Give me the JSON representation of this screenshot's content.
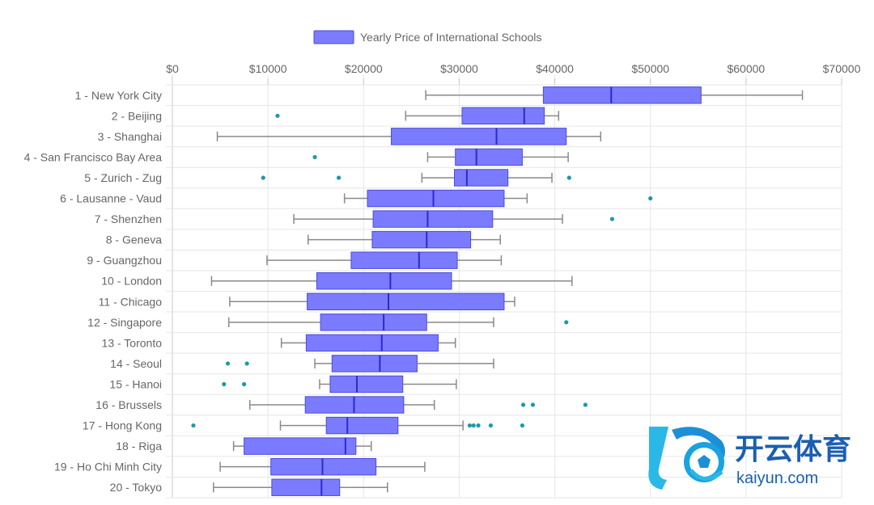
{
  "chart_data": {
    "type": "boxplot",
    "orientation": "horizontal",
    "legend": {
      "label": "Yearly Price of International Schools",
      "position": "top",
      "color": "#7b7bff",
      "border_color": "#4b4bdb"
    },
    "xlim": [
      0,
      70000
    ],
    "x_ticks": [
      {
        "value": 0,
        "label": "$0"
      },
      {
        "value": 10000,
        "label": "$10000"
      },
      {
        "value": 20000,
        "label": "$20000"
      },
      {
        "value": 30000,
        "label": "$30000"
      },
      {
        "value": 40000,
        "label": "$40000"
      },
      {
        "value": 50000,
        "label": "$50000"
      },
      {
        "value": 60000,
        "label": "$60000"
      },
      {
        "value": 70000,
        "label": "$70000"
      }
    ],
    "grid": true,
    "outlier_color": "#1a9aa8",
    "series": [
      {
        "category": "1 - New York City",
        "min": 26500,
        "q1": 38800,
        "median": 45900,
        "q3": 55300,
        "max": 65900,
        "outliers": []
      },
      {
        "category": "2 - Beijing",
        "min": 24400,
        "q1": 30300,
        "median": 36800,
        "q3": 38900,
        "max": 40400,
        "outliers": [
          11000
        ]
      },
      {
        "category": "3 - Shanghai",
        "min": 4700,
        "q1": 22900,
        "median": 33900,
        "q3": 41200,
        "max": 44800,
        "outliers": []
      },
      {
        "category": "4 - San Francisco Bay Area",
        "min": 26700,
        "q1": 29600,
        "median": 31800,
        "q3": 36600,
        "max": 41400,
        "outliers": [
          14900
        ]
      },
      {
        "category": "5 - Zurich - Zug",
        "min": 26100,
        "q1": 29500,
        "median": 30800,
        "q3": 35100,
        "max": 39700,
        "outliers": [
          9500,
          17400,
          41500
        ]
      },
      {
        "category": "6 - Lausanne - Vaud",
        "min": 18000,
        "q1": 20400,
        "median": 27300,
        "q3": 34700,
        "max": 37100,
        "outliers": [
          50000
        ]
      },
      {
        "category": "7 - Shenzhen",
        "min": 12700,
        "q1": 21000,
        "median": 26700,
        "q3": 33500,
        "max": 40800,
        "outliers": [
          46000
        ]
      },
      {
        "category": "8 - Geneva",
        "min": 14200,
        "q1": 20900,
        "median": 26600,
        "q3": 31200,
        "max": 34300,
        "outliers": []
      },
      {
        "category": "9 - Guangzhou",
        "min": 9900,
        "q1": 18700,
        "median": 25800,
        "q3": 29800,
        "max": 34400,
        "outliers": []
      },
      {
        "category": "10 - London",
        "min": 4100,
        "q1": 15100,
        "median": 22800,
        "q3": 29200,
        "max": 41800,
        "outliers": []
      },
      {
        "category": "11 - Chicago",
        "min": 6000,
        "q1": 14100,
        "median": 22600,
        "q3": 34700,
        "max": 35800,
        "outliers": []
      },
      {
        "category": "12 - Singapore",
        "min": 5900,
        "q1": 15500,
        "median": 22100,
        "q3": 26600,
        "max": 33600,
        "outliers": [
          41200
        ]
      },
      {
        "category": "13 - Toronto",
        "min": 11400,
        "q1": 14000,
        "median": 21900,
        "q3": 27800,
        "max": 29600,
        "outliers": []
      },
      {
        "category": "14 - Seoul",
        "min": 14900,
        "q1": 16700,
        "median": 21700,
        "q3": 25600,
        "max": 33600,
        "outliers": [
          5800,
          7800
        ]
      },
      {
        "category": "15 - Hanoi",
        "min": 15400,
        "q1": 16500,
        "median": 19300,
        "q3": 24100,
        "max": 29700,
        "outliers": [
          5400,
          7500
        ]
      },
      {
        "category": "16 - Brussels",
        "min": 8100,
        "q1": 13900,
        "median": 19000,
        "q3": 24200,
        "max": 27400,
        "outliers": [
          36700,
          37700,
          43200
        ]
      },
      {
        "category": "17 - Hong Kong",
        "min": 11300,
        "q1": 16100,
        "median": 18300,
        "q3": 23600,
        "max": 30400,
        "outliers": [
          2200,
          31100,
          31500,
          32000,
          33300,
          36600
        ]
      },
      {
        "category": "18 - Riga",
        "min": 6400,
        "q1": 7500,
        "median": 18100,
        "q3": 19200,
        "max": 20800,
        "outliers": []
      },
      {
        "category": "19 - Ho Chi Minh City",
        "min": 5000,
        "q1": 10300,
        "median": 15700,
        "q3": 21300,
        "max": 26400,
        "outliers": []
      },
      {
        "category": "20 - Tokyo",
        "min": 4300,
        "q1": 10400,
        "median": 15600,
        "q3": 17500,
        "max": 22500,
        "outliers": []
      }
    ]
  },
  "watermark": {
    "brand_cn": "开云体育",
    "brand_en": "kaiyun.com",
    "icon": "k-soccer-ball-logo"
  }
}
